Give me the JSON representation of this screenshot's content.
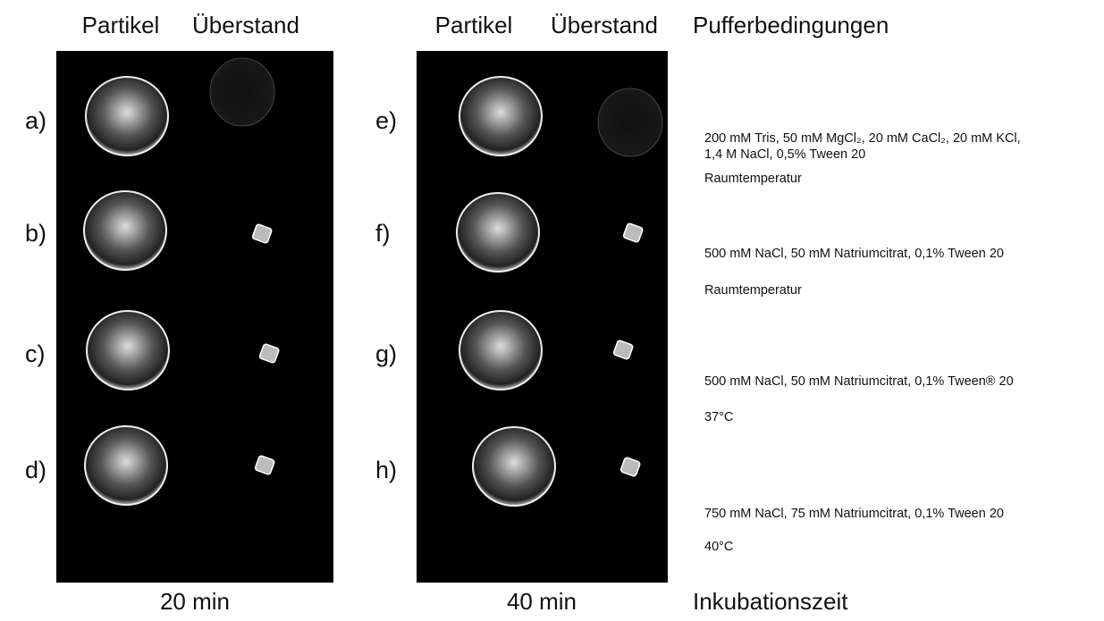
{
  "panels": [
    {
      "headers": [
        "Partikel",
        "Überstand"
      ],
      "rows": [
        "a)",
        "b)",
        "c)",
        "d)"
      ],
      "time": "20 min"
    },
    {
      "headers": [
        "Partikel",
        "Überstand"
      ],
      "rows": [
        "e)",
        "f)",
        "g)",
        "h)"
      ],
      "time": "40 min"
    }
  ],
  "conditions": {
    "title": "Pufferbedingungen",
    "rows": [
      {
        "buffer": [
          "200 mM Tris, 50 mM MgCl₂, 20 mM CaCl₂, 20 mM KCl,",
          "1,4 M NaCl, 0,5% Tween 20"
        ],
        "temperature": "Raumtemperatur"
      },
      {
        "buffer": [
          "500 mM NaCl, 50 mM Natriumcitrat, 0,1% Tween 20"
        ],
        "temperature": "Raumtemperatur"
      },
      {
        "buffer": [
          "500 mM NaCl, 50 mM Natriumcitrat, 0,1% Tween® 20"
        ],
        "temperature": "37°C"
      },
      {
        "buffer": [
          "750 mM NaCl, 75 mM Natriumcitrat, 0,1% Tween 20"
        ],
        "temperature": "40°C"
      }
    ]
  },
  "footer": "Inkubationszeit"
}
